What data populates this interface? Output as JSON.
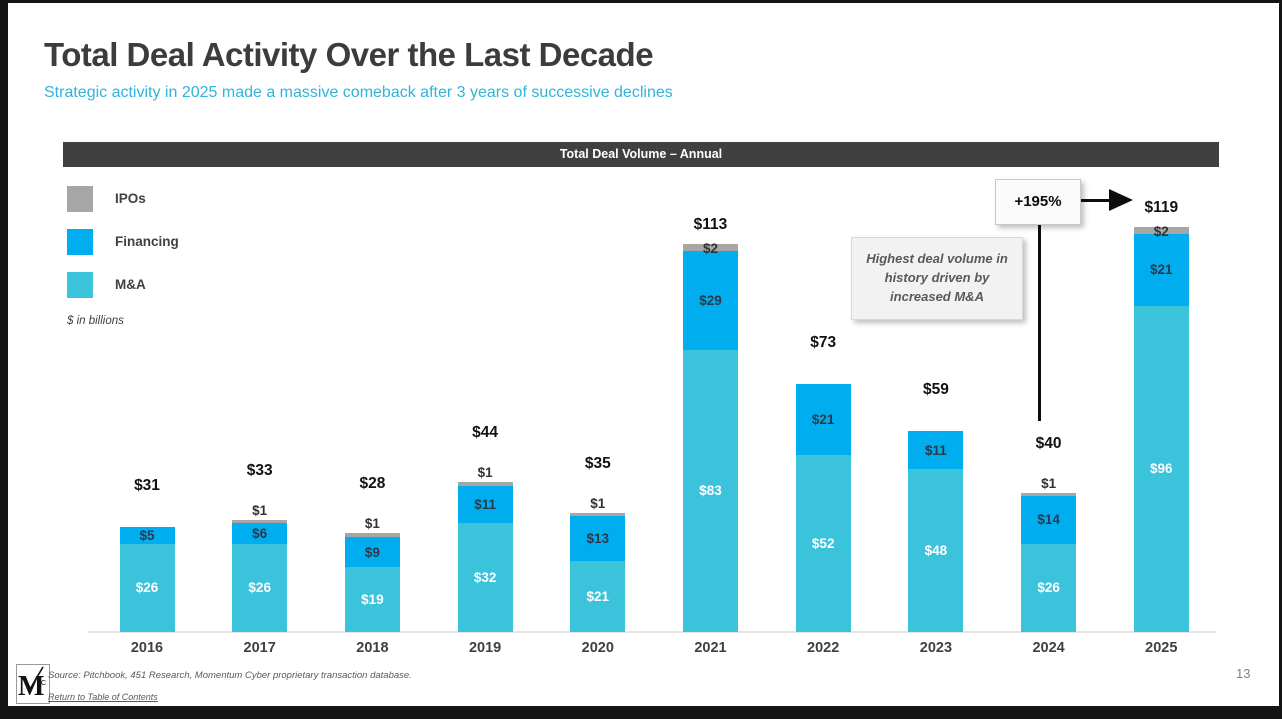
{
  "header": {
    "title": "Total Deal Activity Over the Last Decade",
    "subtitle": "Strategic activity in 2025 made a massive comeback after 3 years of successive declines"
  },
  "chart_header": {
    "label": "Total Deal Volume – Annual"
  },
  "legend": {
    "items": [
      {
        "label": "IPOs",
        "color": "#A6A6A6"
      },
      {
        "label": "Financing",
        "color": "#00AEEF"
      },
      {
        "label": "M&A",
        "color": "#3CC3DC"
      }
    ],
    "note": "$ in billions"
  },
  "annotations": {
    "growth_label": "+195%",
    "callout": "Highest deal volume in history driven by increased M&A"
  },
  "chart_data": {
    "type": "bar",
    "stacked": true,
    "title": "Total Deal Volume – Annual",
    "ylabel": "$ in billions",
    "ylim": [
      0,
      125
    ],
    "grid": false,
    "legend_position": "top-left",
    "categories": [
      "2016",
      "2017",
      "2018",
      "2019",
      "2020",
      "2021",
      "2022",
      "2023",
      "2024",
      "2025"
    ],
    "series": [
      {
        "name": "M&A",
        "color": "#3CC3DC",
        "label_color": "#ffffff",
        "values": [
          26,
          26,
          19,
          32,
          21,
          83,
          52,
          48,
          26,
          96
        ]
      },
      {
        "name": "Financing",
        "color": "#00AEEF",
        "label_color": "#2b3a4a",
        "values": [
          5,
          6,
          9,
          11,
          13,
          29,
          21,
          11,
          14,
          21
        ]
      },
      {
        "name": "IPOs",
        "color": "#A6A6A6",
        "label_color": "#333333",
        "values": [
          0,
          1,
          1,
          1,
          1,
          2,
          0,
          0,
          1,
          2
        ]
      }
    ],
    "totals": [
      31,
      33,
      28,
      44,
      35,
      113,
      73,
      59,
      40,
      119
    ],
    "currency_prefix": "$"
  },
  "footer": {
    "source": "Source: Pitchbook, 451 Research, Momentum Cyber proprietary transaction database.",
    "link": "Return to Table of Contents",
    "logo_letter": "M",
    "logo_sub": "C"
  },
  "page": {
    "number": "13"
  }
}
